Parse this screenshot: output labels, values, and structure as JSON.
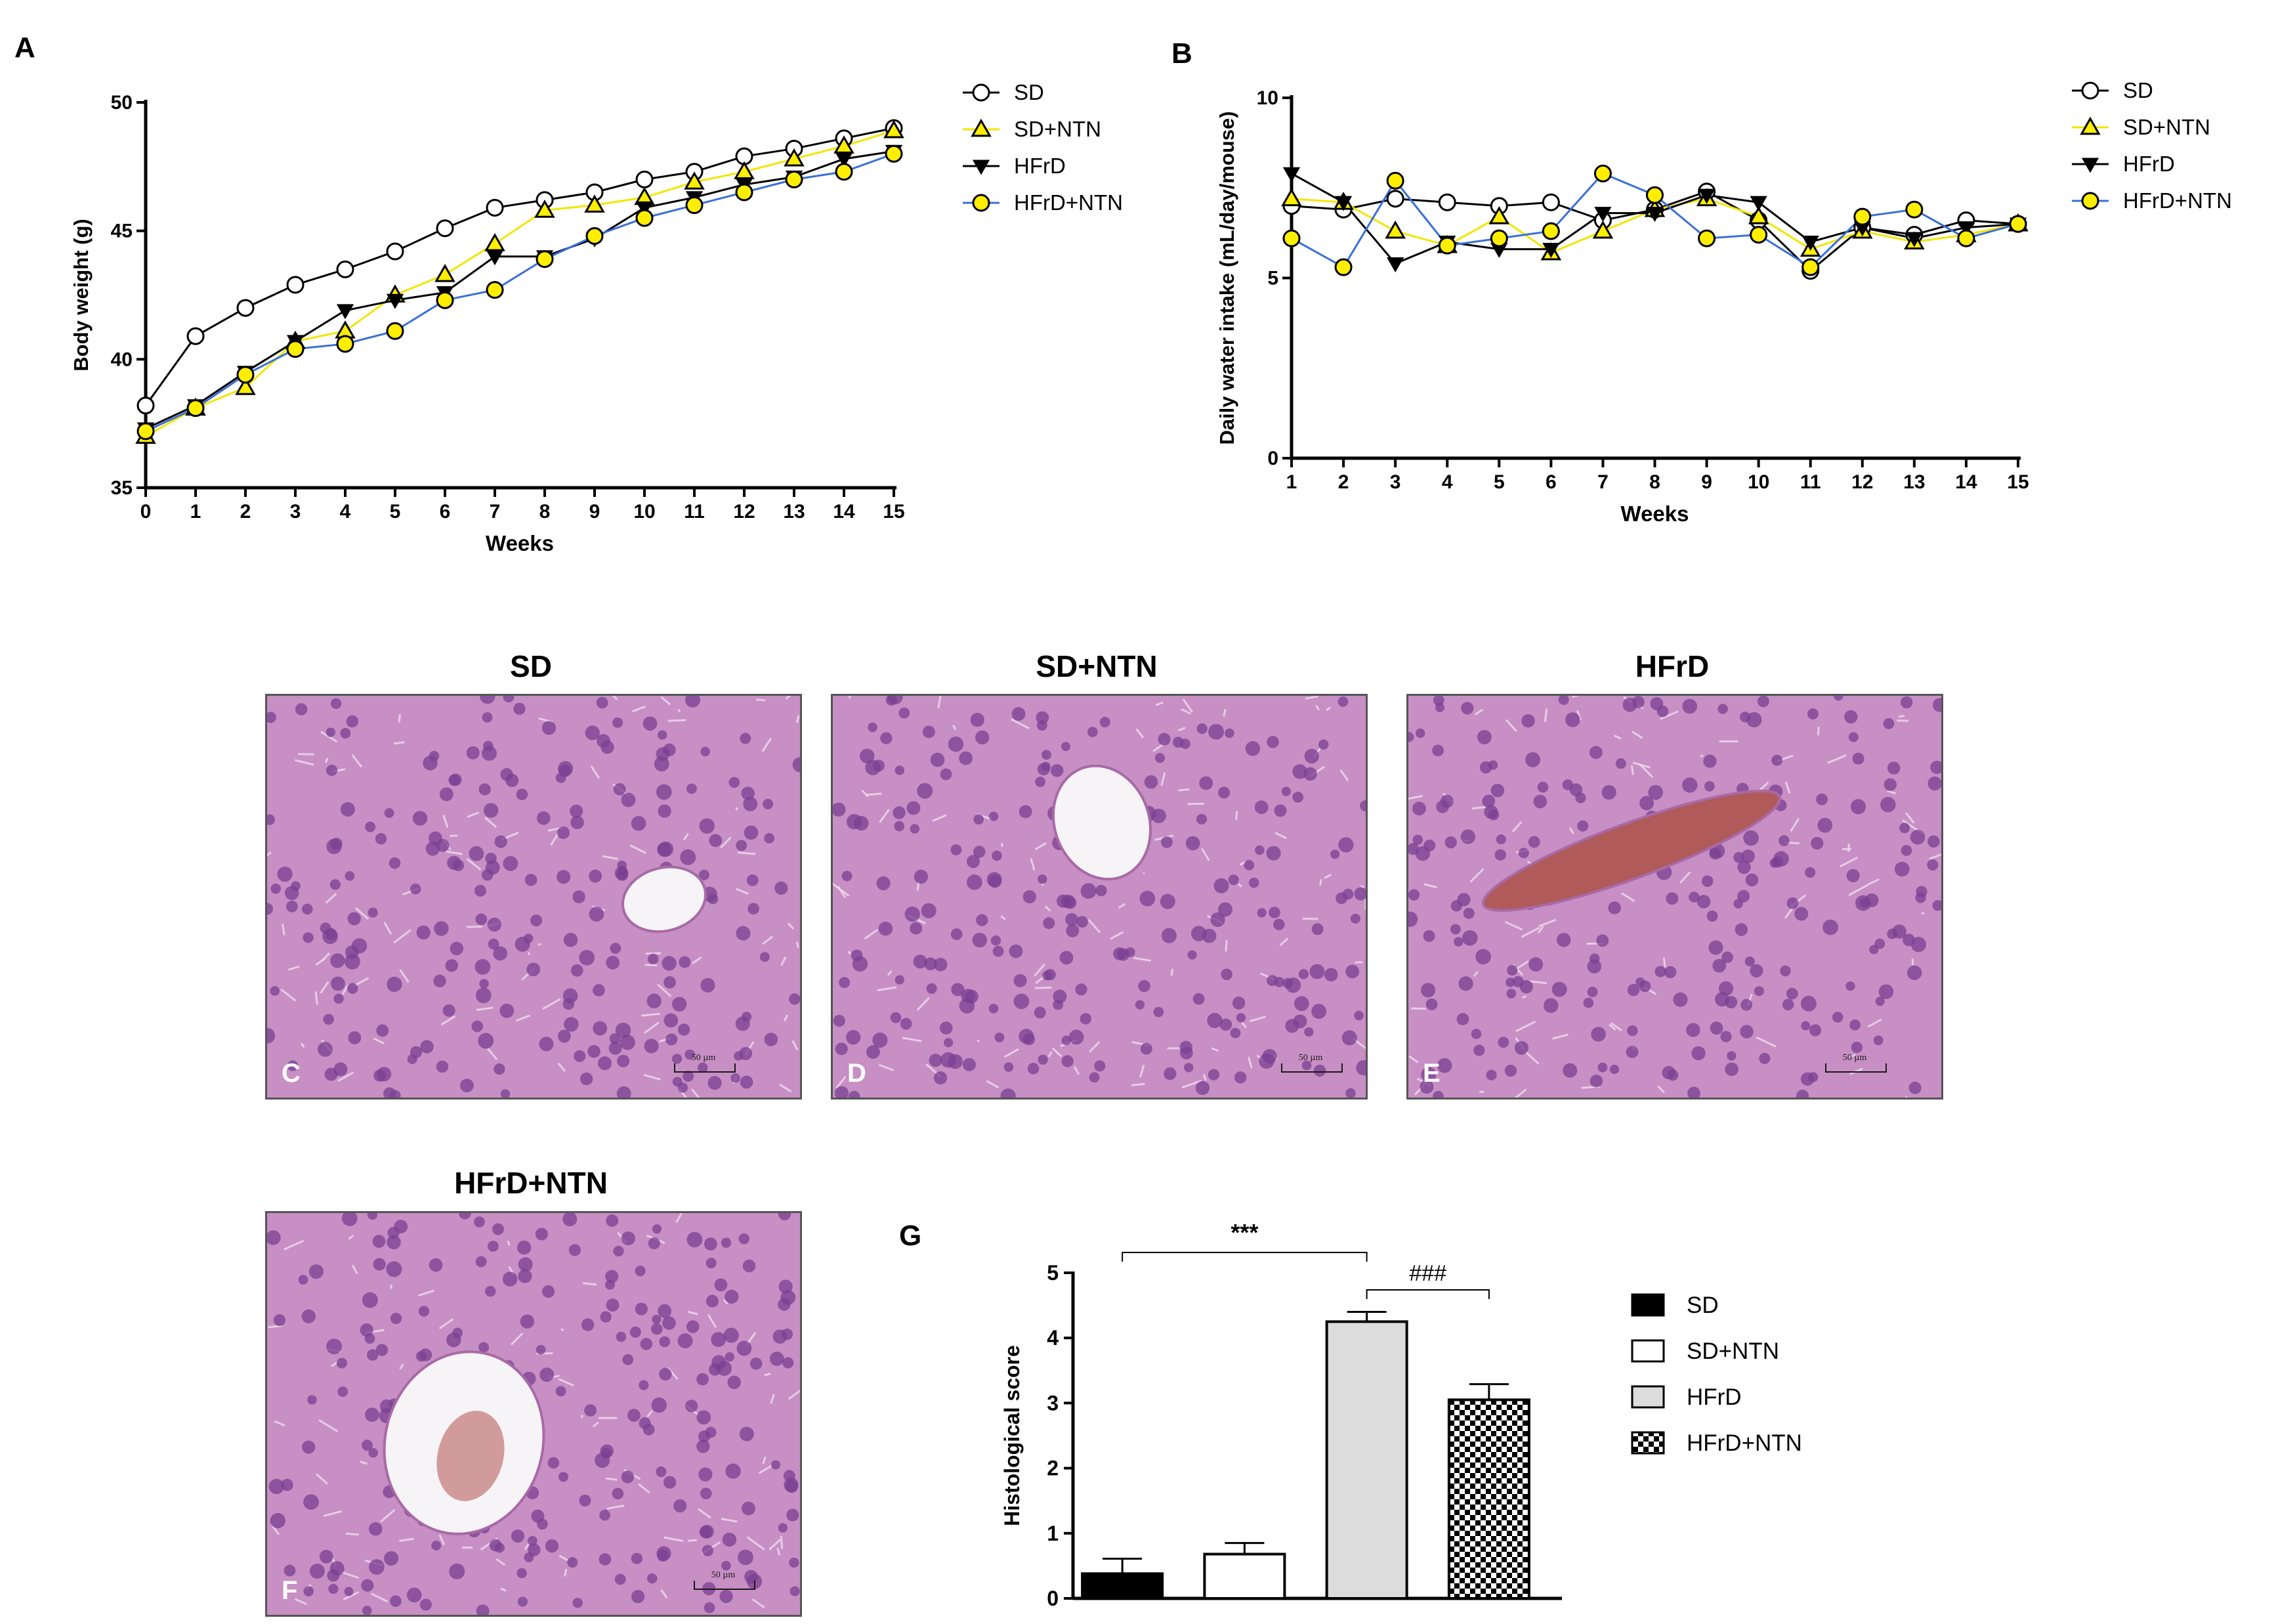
{
  "panels": {
    "a": "A",
    "b": "B",
    "g": "G"
  },
  "images": [
    {
      "title": "SD",
      "letter": "C",
      "scale": "50 µm",
      "vessel": "small"
    },
    {
      "title": "SD+NTN",
      "letter": "D",
      "scale": "50 µm",
      "vessel": "oval"
    },
    {
      "title": "HFrD",
      "letter": "E",
      "scale": "50 µm",
      "vessel": "congested"
    },
    {
      "title": "HFrD+NTN",
      "letter": "F",
      "scale": "50 µm",
      "vessel": "blood"
    }
  ],
  "colors": {
    "sd": "#ffffff",
    "sd_ntn": "#f2e600",
    "hfrd": "#000000",
    "hfrd_ntn": "#3a6fd8",
    "yellow_fill": "#ffee00",
    "tissue": "#c78fc4",
    "nucleus": "#7a3f92"
  },
  "chart_data": [
    {
      "id": "A",
      "type": "line",
      "xlabel": "Weeks",
      "ylabel": "Body weight (g)",
      "xlim": [
        0,
        15
      ],
      "ylim": [
        35,
        50
      ],
      "xticks": [
        0,
        1,
        2,
        3,
        4,
        5,
        6,
        7,
        8,
        9,
        10,
        11,
        12,
        13,
        14,
        15
      ],
      "yticks": [
        35,
        40,
        45,
        50
      ],
      "x": [
        0,
        1,
        2,
        3,
        4,
        5,
        6,
        7,
        8,
        9,
        10,
        11,
        12,
        13,
        14,
        15
      ],
      "series": [
        {
          "name": "SD",
          "marker": "circle-open",
          "values": [
            38.2,
            40.9,
            42.0,
            42.9,
            43.5,
            44.2,
            45.1,
            45.9,
            46.2,
            46.5,
            47.0,
            47.3,
            47.9,
            48.2,
            48.6,
            49.0
          ]
        },
        {
          "name": "SD+NTN",
          "marker": "triangle-up",
          "values": [
            37.0,
            38.1,
            38.9,
            40.7,
            41.1,
            42.5,
            43.3,
            44.5,
            45.8,
            46.0,
            46.3,
            46.9,
            47.3,
            47.8,
            48.3,
            48.9
          ]
        },
        {
          "name": "HFrD",
          "marker": "triangle-down",
          "values": [
            37.3,
            38.2,
            39.5,
            40.7,
            41.9,
            42.3,
            42.6,
            44.0,
            44.0,
            44.7,
            45.9,
            46.3,
            46.8,
            47.1,
            47.8,
            48.1
          ]
        },
        {
          "name": "HFrD+NTN",
          "marker": "circle-yellow",
          "values": [
            37.2,
            38.1,
            39.4,
            40.4,
            40.6,
            41.1,
            42.3,
            42.7,
            43.9,
            44.8,
            45.5,
            46.0,
            46.5,
            47.0,
            47.3,
            48.0
          ]
        }
      ]
    },
    {
      "id": "B",
      "type": "line",
      "xlabel": "Weeks",
      "ylabel": "Daily water intake (mL/day/mouse)",
      "xlim": [
        1,
        15
      ],
      "ylim": [
        0,
        10
      ],
      "xticks": [
        1,
        2,
        3,
        4,
        5,
        6,
        7,
        8,
        9,
        10,
        11,
        12,
        13,
        14,
        15
      ],
      "yticks": [
        0,
        5,
        10
      ],
      "x": [
        1,
        2,
        3,
        4,
        5,
        6,
        7,
        8,
        9,
        10,
        11,
        12,
        13,
        14,
        15
      ],
      "series": [
        {
          "name": "SD",
          "marker": "circle-open",
          "values": [
            7.0,
            6.9,
            7.2,
            7.1,
            7.0,
            7.1,
            6.6,
            6.9,
            7.4,
            6.6,
            5.2,
            6.4,
            6.2,
            6.6,
            6.5
          ]
        },
        {
          "name": "SD+NTN",
          "marker": "triangle-up",
          "values": [
            7.2,
            7.1,
            6.3,
            5.9,
            6.7,
            5.7,
            6.3,
            6.9,
            7.2,
            6.7,
            5.8,
            6.3,
            6.0,
            6.2,
            6.5
          ]
        },
        {
          "name": "HFrD",
          "marker": "triangle-down",
          "values": [
            7.9,
            7.1,
            5.4,
            6.0,
            5.8,
            5.8,
            6.8,
            6.8,
            7.3,
            7.1,
            6.0,
            6.4,
            6.1,
            6.4,
            6.5
          ]
        },
        {
          "name": "HFrD+NTN",
          "marker": "circle-yellow",
          "values": [
            6.1,
            5.3,
            7.7,
            5.9,
            6.1,
            6.3,
            7.9,
            7.3,
            6.1,
            6.2,
            5.3,
            6.7,
            6.9,
            6.1,
            6.5
          ]
        }
      ]
    },
    {
      "id": "G",
      "type": "bar",
      "ylabel": "Histological score",
      "ylim": [
        0,
        5
      ],
      "yticks": [
        0,
        1,
        2,
        3,
        4,
        5
      ],
      "categories": [
        "SD",
        "SD+NTN",
        "HFrD",
        "HFrD+NTN"
      ],
      "values": [
        0.38,
        0.68,
        4.25,
        3.05
      ],
      "errors": [
        0.23,
        0.17,
        0.15,
        0.24
      ],
      "fills": [
        "black",
        "white",
        "lightgray",
        "checker"
      ],
      "annotations": [
        {
          "from": 0,
          "to": 2,
          "text": "***"
        },
        {
          "from": 2,
          "to": 3,
          "text": "###"
        }
      ]
    }
  ]
}
